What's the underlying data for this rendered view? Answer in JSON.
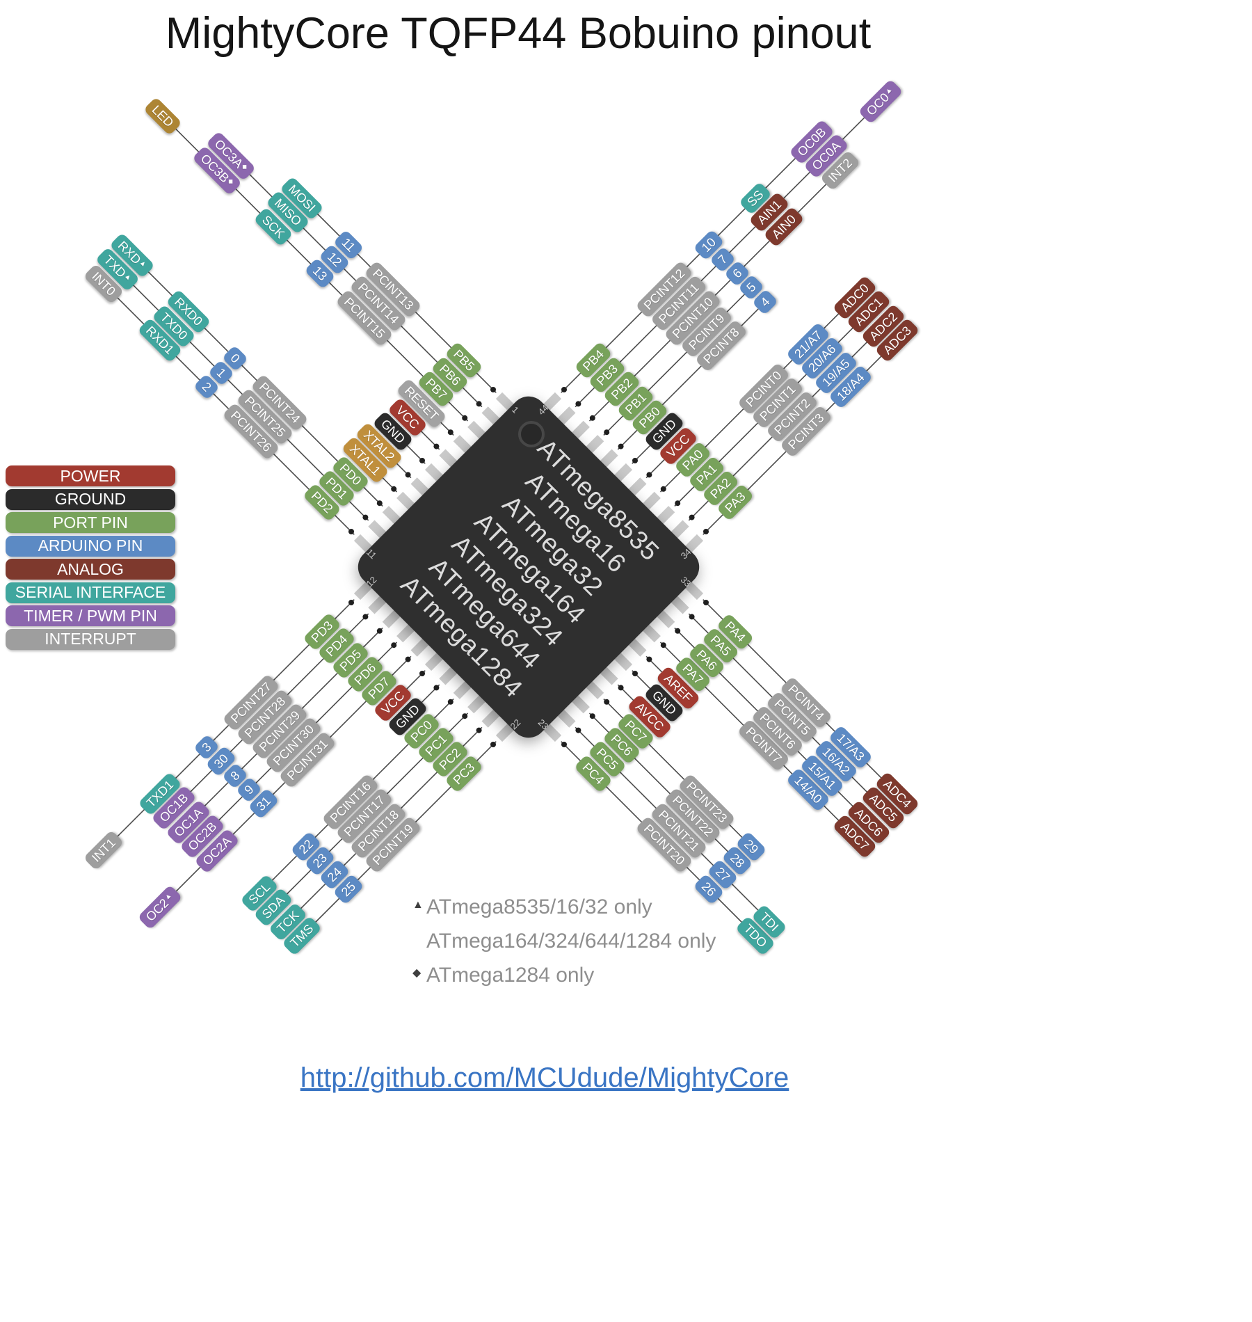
{
  "title": "MightyCore TQFP44 Bobuino pinout",
  "colors": {
    "power": "#a23a30",
    "ground": "#2b2b2b",
    "port": "#78a25b",
    "arduino": "#5c8ac4",
    "analog": "#7e392d",
    "serial": "#40a69e",
    "pwm": "#8c67ae",
    "interrupt": "#9e9e9e",
    "reset": "#a2a2a2",
    "xtal": "#c08f3c",
    "led": "#ad8534",
    "chip": "#2f2f2f",
    "chip_text": "#dcdcdc",
    "wire": "#4b4b4b",
    "stub": "#c9c9c9",
    "dot": "#1f1f1f",
    "link": "#3a75c4"
  },
  "legend": [
    {
      "label": "POWER",
      "type": "power"
    },
    {
      "label": "GROUND",
      "type": "ground"
    },
    {
      "label": "PORT PIN",
      "type": "port"
    },
    {
      "label": "ARDUINO PIN",
      "type": "arduino"
    },
    {
      "label": "ANALOG",
      "type": "analog"
    },
    {
      "label": "SERIAL INTERFACE",
      "type": "serial"
    },
    {
      "label": "TIMER / PWM PIN",
      "type": "pwm"
    },
    {
      "label": "INTERRUPT",
      "type": "interrupt"
    }
  ],
  "chip": {
    "names": [
      "ATmega8535",
      "ATmega16",
      "ATmega32",
      "ATmega164",
      "ATmega324",
      "ATmega644",
      "ATmega1284"
    ],
    "corner_numbers": [
      "1",
      "44",
      "11",
      "12",
      "22",
      "23",
      "34",
      "33"
    ]
  },
  "pins": {
    "top_left": [
      [
        {
          "t": "PB5",
          "c": "port"
        },
        {
          "t": "PCINT13",
          "c": "interrupt"
        },
        {
          "t": "11",
          "c": "arduino"
        },
        {
          "t": "MOSI",
          "c": "serial"
        }
      ],
      [
        {
          "t": "PB6",
          "c": "port"
        },
        {
          "t": "PCINT14",
          "c": "interrupt"
        },
        {
          "t": "12",
          "c": "arduino"
        },
        {
          "t": "MISO",
          "c": "serial"
        },
        {
          "t": "OC3A",
          "c": "pwm",
          "m": "◆"
        }
      ],
      [
        {
          "t": "PB7",
          "c": "port"
        },
        {
          "t": "PCINT15",
          "c": "interrupt"
        },
        {
          "t": "13",
          "c": "arduino"
        },
        {
          "t": "SCK",
          "c": "serial"
        },
        {
          "t": "OC3B",
          "c": "pwm",
          "m": "◆"
        },
        {
          "t": "LED",
          "c": "led"
        }
      ],
      [
        {
          "t": "RESET",
          "c": "reset"
        }
      ],
      [
        {
          "t": "VCC",
          "c": "power"
        }
      ],
      [
        {
          "t": "GND",
          "c": "ground"
        }
      ],
      [
        {
          "t": "XTAL2",
          "c": "xtal"
        }
      ],
      [
        {
          "t": "XTAL1",
          "c": "xtal"
        }
      ],
      [
        {
          "t": "PD0",
          "c": "port"
        },
        {
          "t": "PCINT24",
          "c": "interrupt"
        },
        {
          "t": "0",
          "c": "arduino"
        },
        {
          "t": "RXD0",
          "c": "serial"
        },
        {
          "t": "RXD",
          "c": "serial",
          "m": "▲"
        }
      ],
      [
        {
          "t": "PD1",
          "c": "port"
        },
        {
          "t": "PCINT25",
          "c": "interrupt"
        },
        {
          "t": "1",
          "c": "arduino"
        },
        {
          "t": "TXD0",
          "c": "serial"
        },
        {
          "t": "TXD",
          "c": "serial",
          "m": "▲"
        }
      ],
      [
        {
          "t": "PD2",
          "c": "port"
        },
        {
          "t": "PCINT26",
          "c": "interrupt"
        },
        {
          "t": "2",
          "c": "arduino"
        },
        {
          "t": "RXD1",
          "c": "serial"
        },
        {
          "t": "INT0",
          "c": "interrupt"
        }
      ]
    ],
    "top_right": [
      [
        {
          "t": "PB4",
          "c": "port"
        },
        {
          "t": "PCINT12",
          "c": "interrupt"
        },
        {
          "t": "10",
          "c": "arduino"
        },
        {
          "t": "SS",
          "c": "serial"
        },
        {
          "t": "OC0B",
          "c": "pwm"
        }
      ],
      [
        {
          "t": "PB3",
          "c": "port"
        },
        {
          "t": "PCINT11",
          "c": "interrupt"
        },
        {
          "t": "7",
          "c": "arduino"
        },
        {
          "t": "AIN1",
          "c": "analog"
        },
        {
          "t": "OC0A",
          "c": "pwm"
        },
        {
          "t": "OC0",
          "c": "pwm",
          "m": "▲"
        }
      ],
      [
        {
          "t": "PB2",
          "c": "port"
        },
        {
          "t": "PCINT10",
          "c": "interrupt"
        },
        {
          "t": "6",
          "c": "arduino"
        },
        {
          "t": "AIN0",
          "c": "analog"
        },
        {
          "t": "INT2",
          "c": "interrupt"
        }
      ],
      [
        {
          "t": "PB1",
          "c": "port"
        },
        {
          "t": "PCINT9",
          "c": "interrupt"
        },
        {
          "t": "5",
          "c": "arduino"
        }
      ],
      [
        {
          "t": "PB0",
          "c": "port"
        },
        {
          "t": "PCINT8",
          "c": "interrupt"
        },
        {
          "t": "4",
          "c": "arduino"
        }
      ],
      [
        {
          "t": "GND",
          "c": "ground"
        }
      ],
      [
        {
          "t": "VCC",
          "c": "power"
        }
      ],
      [
        {
          "t": "PA0",
          "c": "port"
        },
        {
          "t": "PCINT0",
          "c": "interrupt"
        },
        {
          "t": "21/A7",
          "c": "arduino"
        },
        {
          "t": "ADC0",
          "c": "analog"
        }
      ],
      [
        {
          "t": "PA1",
          "c": "port"
        },
        {
          "t": "PCINT1",
          "c": "interrupt"
        },
        {
          "t": "20/A6",
          "c": "arduino"
        },
        {
          "t": "ADC1",
          "c": "analog"
        }
      ],
      [
        {
          "t": "PA2",
          "c": "port"
        },
        {
          "t": "PCINT2",
          "c": "interrupt"
        },
        {
          "t": "19/A5",
          "c": "arduino"
        },
        {
          "t": "ADC2",
          "c": "analog"
        }
      ],
      [
        {
          "t": "PA3",
          "c": "port"
        },
        {
          "t": "PCINT3",
          "c": "interrupt"
        },
        {
          "t": "18/A4",
          "c": "arduino"
        },
        {
          "t": "ADC3",
          "c": "analog"
        }
      ]
    ],
    "bottom_left": [
      [
        {
          "t": "PD3",
          "c": "port"
        },
        {
          "t": "PCINT27",
          "c": "interrupt"
        },
        {
          "t": "3",
          "c": "arduino"
        },
        {
          "t": "TXD1",
          "c": "serial"
        },
        {
          "t": "INT1",
          "c": "interrupt"
        }
      ],
      [
        {
          "t": "PD4",
          "c": "port"
        },
        {
          "t": "PCINT28",
          "c": "interrupt"
        },
        {
          "t": "30",
          "c": "arduino"
        },
        {
          "t": "OC1B",
          "c": "pwm"
        }
      ],
      [
        {
          "t": "PD5",
          "c": "port"
        },
        {
          "t": "PCINT29",
          "c": "interrupt"
        },
        {
          "t": "8",
          "c": "arduino"
        },
        {
          "t": "OC1A",
          "c": "pwm"
        }
      ],
      [
        {
          "t": "PD6",
          "c": "port"
        },
        {
          "t": "PCINT30",
          "c": "interrupt"
        },
        {
          "t": "9",
          "c": "arduino"
        },
        {
          "t": "OC2B",
          "c": "pwm"
        }
      ],
      [
        {
          "t": "PD7",
          "c": "port"
        },
        {
          "t": "PCINT31",
          "c": "interrupt"
        },
        {
          "t": "31",
          "c": "arduino"
        },
        {
          "t": "OC2A",
          "c": "pwm"
        },
        {
          "t": "OC2",
          "c": "pwm",
          "m": "▲"
        }
      ],
      [
        {
          "t": "VCC",
          "c": "power"
        }
      ],
      [
        {
          "t": "GND",
          "c": "ground"
        }
      ],
      [
        {
          "t": "PC0",
          "c": "port"
        },
        {
          "t": "PCINT16",
          "c": "interrupt"
        },
        {
          "t": "22",
          "c": "arduino"
        },
        {
          "t": "SCL",
          "c": "serial"
        }
      ],
      [
        {
          "t": "PC1",
          "c": "port"
        },
        {
          "t": "PCINT17",
          "c": "interrupt"
        },
        {
          "t": "23",
          "c": "arduino"
        },
        {
          "t": "SDA",
          "c": "serial"
        }
      ],
      [
        {
          "t": "PC2",
          "c": "port"
        },
        {
          "t": "PCINT18",
          "c": "interrupt"
        },
        {
          "t": "24",
          "c": "arduino"
        },
        {
          "t": "TCK",
          "c": "serial"
        }
      ],
      [
        {
          "t": "PC3",
          "c": "port"
        },
        {
          "t": "PCINT19",
          "c": "interrupt"
        },
        {
          "t": "25",
          "c": "arduino"
        },
        {
          "t": "TMS",
          "c": "serial"
        }
      ]
    ],
    "bottom_right": [
      [
        {
          "t": "PC4",
          "c": "port"
        },
        {
          "t": "PCINT20",
          "c": "interrupt"
        },
        {
          "t": "26",
          "c": "arduino"
        },
        {
          "t": "TDO",
          "c": "serial"
        }
      ],
      [
        {
          "t": "PC5",
          "c": "port"
        },
        {
          "t": "PCINT21",
          "c": "interrupt"
        },
        {
          "t": "27",
          "c": "arduino"
        },
        {
          "t": "TDI",
          "c": "serial"
        }
      ],
      [
        {
          "t": "PC6",
          "c": "port"
        },
        {
          "t": "PCINT22",
          "c": "interrupt"
        },
        {
          "t": "28",
          "c": "arduino"
        }
      ],
      [
        {
          "t": "PC7",
          "c": "port"
        },
        {
          "t": "PCINT23",
          "c": "interrupt"
        },
        {
          "t": "29",
          "c": "arduino"
        }
      ],
      [
        {
          "t": "AVCC",
          "c": "power"
        }
      ],
      [
        {
          "t": "GND",
          "c": "ground"
        }
      ],
      [
        {
          "t": "AREF",
          "c": "power"
        }
      ],
      [
        {
          "t": "PA7",
          "c": "port"
        },
        {
          "t": "PCINT7",
          "c": "interrupt"
        },
        {
          "t": "14/A0",
          "c": "arduino"
        },
        {
          "t": "ADC7",
          "c": "analog"
        }
      ],
      [
        {
          "t": "PA6",
          "c": "port"
        },
        {
          "t": "PCINT6",
          "c": "interrupt"
        },
        {
          "t": "15/A1",
          "c": "arduino"
        },
        {
          "t": "ADC6",
          "c": "analog"
        }
      ],
      [
        {
          "t": "PA5",
          "c": "port"
        },
        {
          "t": "PCINT5",
          "c": "interrupt"
        },
        {
          "t": "16/A2",
          "c": "arduino"
        },
        {
          "t": "ADC5",
          "c": "analog"
        }
      ],
      [
        {
          "t": "PA4",
          "c": "port"
        },
        {
          "t": "PCINT4",
          "c": "interrupt"
        },
        {
          "t": "17/A3",
          "c": "arduino"
        },
        {
          "t": "ADC4",
          "c": "analog"
        }
      ]
    ]
  },
  "footnotes": [
    {
      "marker": "▲",
      "text": "ATmega8535/16/32 only"
    },
    {
      "marker": "",
      "text": "ATmega164/324/644/1284 only"
    },
    {
      "marker": "◆",
      "text": "ATmega1284 only"
    }
  ],
  "footer": {
    "url": "http://github.com/MCUdude/MightyCore"
  }
}
